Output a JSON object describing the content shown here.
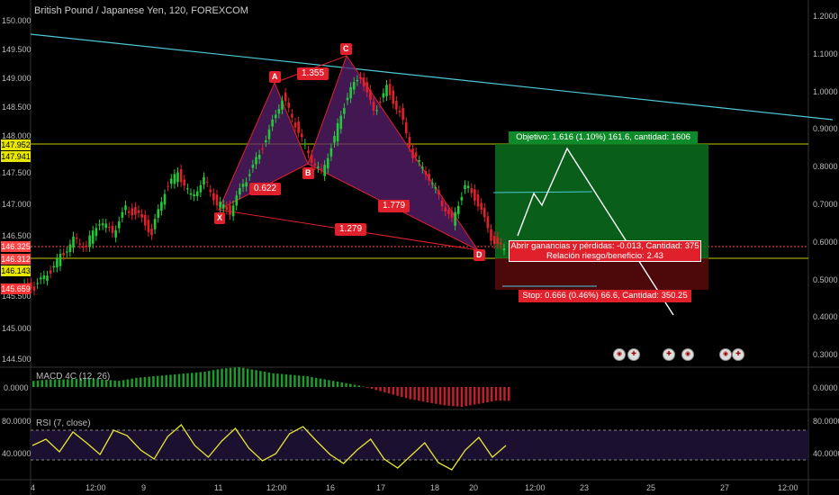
{
  "header": {
    "title": "British Pound / Japanese Yen, 120, FOREXCOM"
  },
  "price_axis": {
    "ticks": [
      "150.000",
      "149.500",
      "149.000",
      "148.500",
      "148.000",
      "147.500",
      "147.000",
      "146.500",
      "146.000",
      "145.500",
      "145.000",
      "144.500"
    ],
    "labels": [
      {
        "text": "147.952",
        "color": "#e6e600"
      },
      {
        "text": "147.941",
        "color": "#e6e600"
      },
      {
        "text": "146.325",
        "color": "#ff4444"
      },
      {
        "text": "146.312",
        "color": "#ff4444"
      },
      {
        "text": "146.143",
        "color": "#e6e600"
      },
      {
        "text": "145.659",
        "color": "#ff3333"
      }
    ]
  },
  "right_axis": {
    "ticks": [
      "1.2000",
      "1.1000",
      "1.0000",
      "0.9000",
      "0.8000",
      "0.7000",
      "0.6000",
      "0.5000",
      "0.4000",
      "0.3000"
    ]
  },
  "time_axis": {
    "ticks": [
      "4",
      "12:00",
      "9",
      "11",
      "12:00",
      "16",
      "17",
      "18",
      "20",
      "12:00",
      "23",
      "25",
      "27",
      "12:00"
    ]
  },
  "pattern": {
    "points": [
      "X",
      "A",
      "B",
      "C",
      "D"
    ],
    "ratios": [
      "1.355",
      "0.622",
      "1.779",
      "1.279"
    ],
    "colors": {
      "fill": "#5a1f6e",
      "line": "#e0212b"
    }
  },
  "position": {
    "target_text": "Objetivo: 1.616 (1.10%) 161.6, cantidad: 1606",
    "pnl_text": "Abrir ganancias y pérdidas: -0.013, Cantidad: 375",
    "rr_text": "Relación riesgo/beneficio: 2.43",
    "stop_text": "Stop: 0.666 (0.46%) 66.6, Cantidad: 350.25",
    "colors": {
      "profit": "#0a6e1f",
      "loss": "#5a0a0a"
    }
  },
  "macd": {
    "label": "MACD 4C (12, 26)",
    "axis_label": "0.0000",
    "axis_label_right": "0.0000"
  },
  "rsi": {
    "label": "RSI (7, close)",
    "ticks": [
      "80.0000",
      "40.0000"
    ],
    "ticks_right": [
      "80.0000",
      "40.0000"
    ]
  },
  "chart_data": [
    {
      "type": "line",
      "title": "British Pound / Japanese Yen, 120, FOREXCOM",
      "series": [
        {
          "values": [
            145.7,
            145.9,
            146.2,
            146.5,
            146.4,
            146.8,
            146.6,
            147.0,
            146.9,
            146.6,
            147.3,
            147.6,
            147.2,
            147.5,
            147.1,
            146.95,
            147.4,
            147.8,
            148.3,
            148.85,
            148.4,
            147.9,
            147.6,
            148.2,
            148.9,
            149.2,
            148.6,
            149.0,
            148.6,
            147.9,
            147.6,
            147.2,
            146.8,
            147.4,
            147.1,
            146.5,
            146.3
          ]
        }
      ],
      "ylim": [
        144.4,
        150.2
      ],
      "annotations": [
        "X",
        "A",
        "B",
        "C",
        "D",
        "1.355",
        "0.622",
        "1.779",
        "1.279"
      ]
    },
    {
      "type": "bar",
      "title": "MACD 4C (12, 26)",
      "values": [
        0.04,
        0.05,
        0.05,
        0.06,
        0.05,
        0.04,
        0.06,
        0.07,
        0.08,
        0.09,
        0.1,
        0.12,
        0.13,
        0.11,
        0.09,
        0.08,
        0.07,
        0.05,
        0.03,
        0.01,
        -0.02,
        -0.05,
        -0.08,
        -0.1,
        -0.12,
        -0.13,
        -0.11,
        -0.09
      ]
    },
    {
      "type": "line",
      "title": "RSI (7, close)",
      "series": [
        {
          "values": [
            55,
            62,
            48,
            70,
            58,
            45,
            72,
            66,
            50,
            40,
            65,
            78,
            55,
            42,
            60,
            74,
            52,
            38,
            46,
            68,
            76,
            60,
            45,
            35,
            50,
            62,
            40,
            30,
            44,
            58,
            36,
            28,
            50,
            64,
            42,
            55
          ]
        }
      ],
      "ylim": [
        20,
        90
      ]
    }
  ]
}
